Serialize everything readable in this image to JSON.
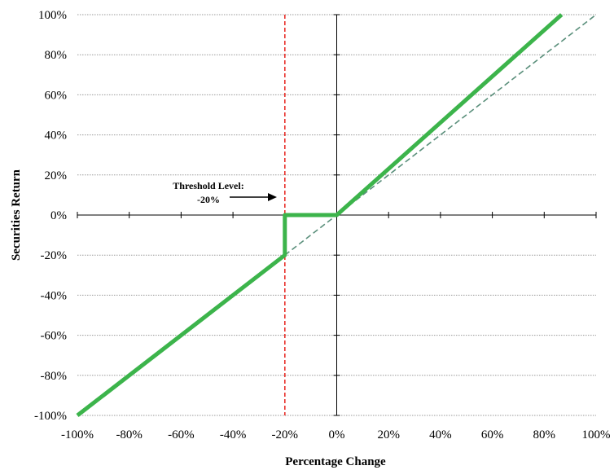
{
  "chart_data": {
    "type": "line",
    "xlabel": "Percentage Change",
    "ylabel": "Securities Return",
    "xlim": [
      -100,
      100
    ],
    "ylim": [
      -100,
      100
    ],
    "x_ticks": [
      -100,
      -80,
      -60,
      -40,
      -20,
      0,
      20,
      40,
      60,
      80,
      100
    ],
    "y_ticks": [
      -100,
      -80,
      -60,
      -40,
      -20,
      0,
      20,
      40,
      60,
      80,
      100
    ],
    "x_tick_labels": [
      "-100%",
      "-80%",
      "-60%",
      "-40%",
      "-20%",
      "0%",
      "20%",
      "40%",
      "60%",
      "80%",
      "100%"
    ],
    "y_tick_labels": [
      "-100%",
      "-80%",
      "-60%",
      "-40%",
      "-20%",
      "0%",
      "20%",
      "40%",
      "60%",
      "80%",
      "100%"
    ],
    "grid": "horizontal",
    "series": [
      {
        "style": "solid-thick",
        "color": "#3cb44b",
        "points": [
          [
            -100,
            -100
          ],
          [
            -20,
            -20
          ],
          [
            -20,
            0
          ],
          [
            0,
            0
          ],
          [
            86.7,
            100
          ]
        ]
      },
      {
        "style": "dashed",
        "color": "#5a8f7b",
        "points": [
          [
            -20,
            -20
          ],
          [
            100,
            100
          ]
        ]
      }
    ],
    "threshold": {
      "x": -20,
      "color": "#e8302a",
      "style": "dashed",
      "label_line1": "Threshold Level:",
      "label_line2": "-20%"
    }
  }
}
